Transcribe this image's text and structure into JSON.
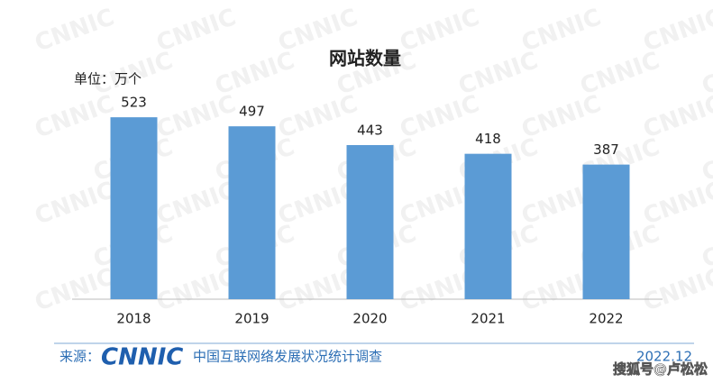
{
  "chart_data": {
    "type": "bar",
    "title": "网站数量",
    "unit_label": "单位：万个",
    "categories": [
      "2018",
      "2019",
      "2020",
      "2021",
      "2022"
    ],
    "values": [
      523,
      497,
      443,
      418,
      387
    ],
    "color": "#5b9bd5"
  },
  "background_watermark": "CNNIC",
  "footer": {
    "source_label": "来源：",
    "logo": "CNNIC",
    "survey": "中国互联网络发展状况统计调查",
    "date": "2022.12"
  },
  "corner_watermark": "搜狐号@卢松松"
}
